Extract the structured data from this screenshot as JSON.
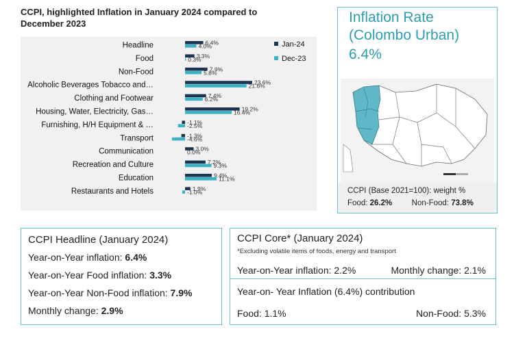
{
  "title": "CCPI, highlighted Inflation in January 2024 compared to December 2023",
  "chart_data": {
    "type": "bar",
    "orientation": "horizontal",
    "categories": [
      "Headline",
      "Food",
      "Non-Food",
      "Alcoholic Beverages Tobacco and…",
      "Clothing and Footwear",
      "Housing, Water, Electricity, Gas…",
      "Furnishing, H/H Equipment & …",
      "Transport",
      "Communication",
      "Recreation and Culture",
      "Education",
      "Restaurants and Hotels"
    ],
    "series": [
      {
        "name": "Jan-24",
        "color": "#1c3553",
        "values": [
          6.4,
          3.3,
          7.9,
          23.6,
          7.4,
          19.2,
          -1.1,
          -1.3,
          3.0,
          7.2,
          9.4,
          1.9
        ],
        "labels": [
          "6.4%",
          "3.3%",
          "7.9%",
          "23.6%",
          "7.4%",
          "19.2%",
          "-1.1%",
          "-1.3%",
          "3.0%",
          "7.2%",
          "9.4%",
          "1.9%"
        ]
      },
      {
        "name": "Dec-23",
        "color": "#3bb3c3",
        "values": [
          4.0,
          0.3,
          5.8,
          21.6,
          6.2,
          16.4,
          -2.5,
          -4.6,
          0.0,
          9.3,
          11.1,
          -1.0
        ],
        "labels": [
          "4.0%",
          "0.3%",
          "5.8%",
          "21.6%",
          "6.2%",
          "16.4%",
          "-2.5%",
          "-4.6%",
          "0.0%",
          "9.3%",
          "11.1%",
          "-1.0%"
        ]
      }
    ],
    "xlim": [
      -5,
      25
    ],
    "legend_position": "top-right"
  },
  "inflation_card": {
    "title_line1": "Inflation Rate",
    "title_line2": "(Colombo Urban)",
    "value": "6.4%",
    "weight_line": "CCPI (Base 2021=100): weight %",
    "food_label": "Food:",
    "food_value": "26.2%",
    "nonfood_label": "Non-Food:",
    "nonfood_value": "73.8%"
  },
  "headline_box": {
    "title": "CCPI Headline (January 2024)",
    "yoy_label": "Year-on-Year inflation:",
    "yoy_value": "6.4%",
    "food_label": "Year-on-Year Food inflation:",
    "food_value": "3.3%",
    "nonfood_label": "Year-on-Year Non-Food inflation:",
    "nonfood_value": "7.9%",
    "monthly_label": "Monthly change:",
    "monthly_value": "2.9%"
  },
  "core_box": {
    "title": "CCPI Core* (January 2024)",
    "note": "*Excluding volatile items of foods, energy and transport",
    "yoy": "Year-on-Year inflation: 2.2%",
    "monthly": "Monthly change: 2.1%"
  },
  "contribution_box": {
    "title": "Year-on- Year Inflation (6.4%) contribution",
    "food": "Food: 1.1%",
    "nonfood": "Non-Food: 5.3%"
  },
  "colors": {
    "accent": "#2a9db0",
    "border": "#6cc3cc",
    "jan": "#1c3553",
    "dec": "#3bb3c3"
  }
}
